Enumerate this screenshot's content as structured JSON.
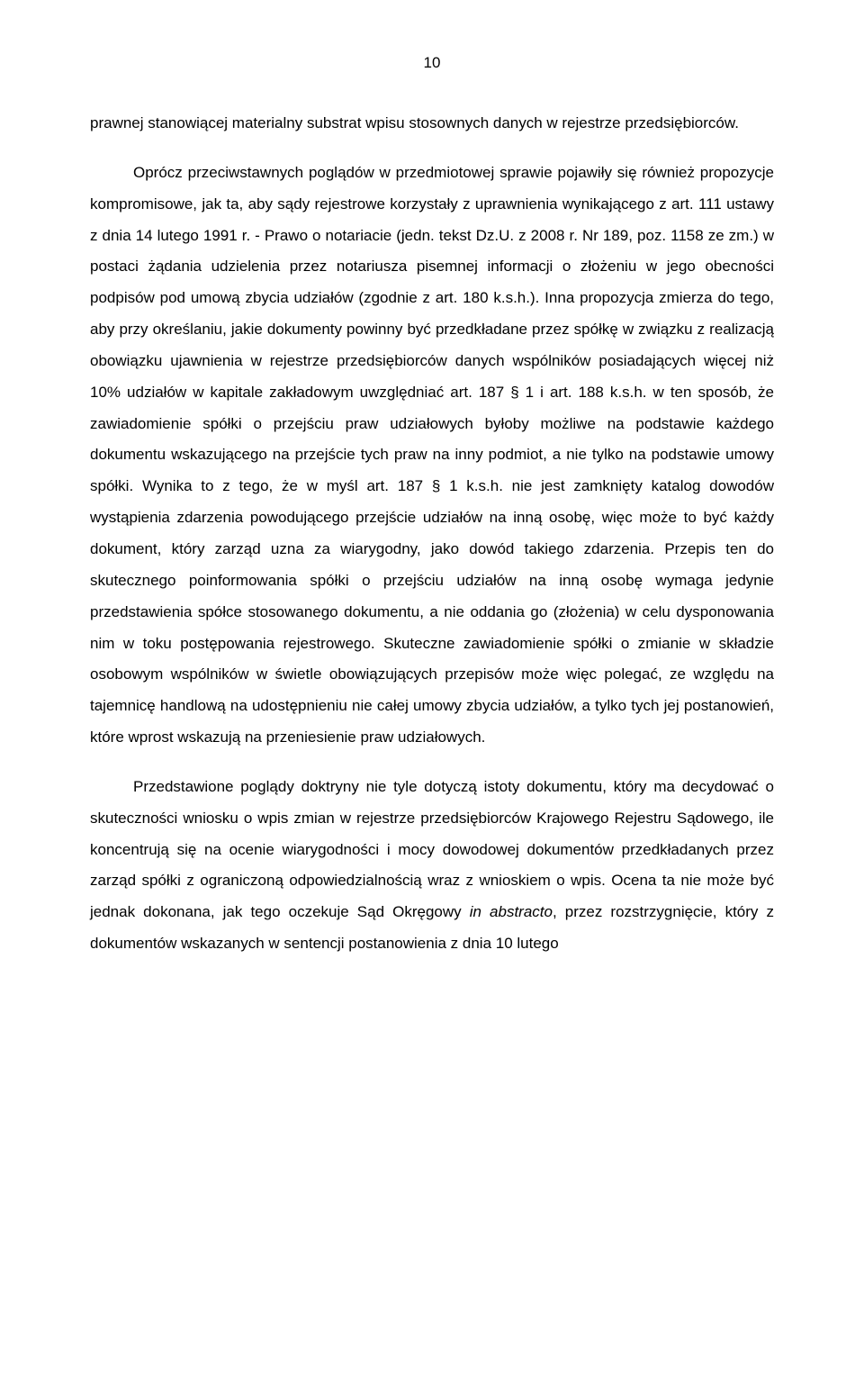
{
  "page_number": "10",
  "paragraphs": [
    {
      "class": "continuation",
      "spans": [
        {
          "text": "prawnej stanowiącej materialny substrat wpisu stosownych danych w rejestrze przedsiębiorców."
        }
      ]
    },
    {
      "class": "new-para",
      "spans": [
        {
          "text": "Oprócz przeciwstawnych poglądów w przedmiotowej sprawie pojawiły się również propozycje kompromisowe, jak ta, aby sądy rejestrowe korzystały z uprawnienia wynikającego z art. 111 ustawy z dnia 14 lutego 1991 r. - Prawo o notariacie (jedn. tekst Dz.U. z 2008 r. Nr 189, poz. 1158 ze zm.) w postaci żądania udzielenia przez notariusza pisemnej informacji o złożeniu w jego obecności podpisów pod umową zbycia udziałów (zgodnie z art. 180 k.s.h.). Inna propozycja zmierza do tego, aby przy określaniu, jakie dokumenty powinny być przedkładane przez spółkę w związku z realizacją obowiązku ujawnienia w rejestrze przedsiębiorców danych wspólników posiadających więcej niż 10% udziałów w kapitale zakładowym uwzględniać art. 187 § 1 i art. 188 k.s.h. w ten sposób, że zawiadomienie spółki o przejściu praw udziałowych byłoby możliwe na podstawie każdego dokumentu wskazującego na przejście tych praw na inny podmiot, a nie tylko na podstawie umowy spółki. Wynika to z tego, że w myśl art. 187 § 1 k.s.h. nie jest zamknięty katalog dowodów wystąpienia zdarzenia powodującego przejście udziałów na inną osobę, więc może to być każdy dokument, który zarząd uzna za wiarygodny, jako dowód takiego zdarzenia. Przepis ten do skutecznego poinformowania spółki o przejściu udziałów na inną osobę wymaga jedynie przedstawienia spółce stosowanego dokumentu, a nie oddania go (złożenia) w celu dysponowania nim w toku postępowania rejestrowego. Skuteczne zawiadomienie spółki o zmianie w składzie osobowym wspólników w świetle obowiązujących przepisów może więc polegać, ze względu na tajemnicę handlową na udostępnieniu nie całej umowy zbycia udziałów, a tylko tych jej postanowień, które wprost wskazują na przeniesienie praw udziałowych."
        }
      ]
    },
    {
      "class": "new-para",
      "spans": [
        {
          "text": "Przedstawione poglądy doktryny nie tyle dotyczą istoty dokumentu, który ma decydować o skuteczności wniosku o wpis zmian w rejestrze przedsiębiorców Krajowego Rejestru Sądowego, ile koncentrują się na ocenie wiarygodności i mocy dowodowej dokumentów przedkładanych przez zarząd spółki z ograniczoną odpowiedzialnością wraz z wnioskiem o wpis. Ocena ta nie może być jednak dokonana, jak tego oczekuje Sąd Okręgowy "
        },
        {
          "text": "in abstracto",
          "italic": true
        },
        {
          "text": ", przez rozstrzygnięcie, który z dokumentów wskazanych w sentencji postanowienia z dnia 10 lutego"
        }
      ]
    }
  ]
}
